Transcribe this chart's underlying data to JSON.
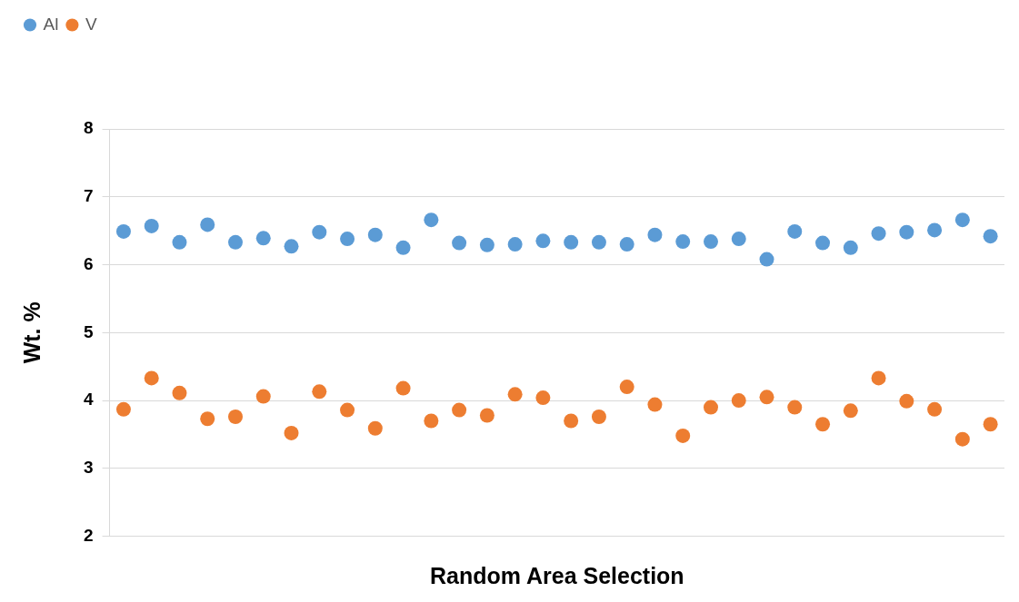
{
  "chart_data": {
    "type": "scatter",
    "xlabel": "Random Area Selection",
    "ylabel": "Wt. %",
    "categories": [
      null,
      null,
      null,
      null,
      null,
      null,
      null,
      null,
      null,
      null,
      null,
      null,
      null,
      null,
      null,
      null,
      null,
      null,
      null,
      null,
      null,
      null,
      null,
      null,
      null,
      null,
      null,
      null,
      null,
      null,
      null,
      null
    ],
    "series": [
      {
        "name": "Al",
        "color": "#5b9bd5",
        "values": [
          6.49,
          6.57,
          6.33,
          6.59,
          6.33,
          6.39,
          6.27,
          6.48,
          6.38,
          6.44,
          6.25,
          6.66,
          6.32,
          6.29,
          6.3,
          6.35,
          6.33,
          6.33,
          6.3,
          6.44,
          6.34,
          6.34,
          6.38,
          6.08,
          6.49,
          6.32,
          6.25,
          6.46,
          6.48,
          6.51,
          6.66,
          6.42
        ]
      },
      {
        "name": "V",
        "color": "#ed7d31",
        "values": [
          3.87,
          4.33,
          4.11,
          3.73,
          3.76,
          4.06,
          3.52,
          4.13,
          3.86,
          3.59,
          4.18,
          3.7,
          3.86,
          3.78,
          4.09,
          4.04,
          3.7,
          3.76,
          4.2,
          3.94,
          3.48,
          3.9,
          4.0,
          4.05,
          3.9,
          3.65,
          3.85,
          4.33,
          3.99,
          3.87,
          3.43,
          3.65
        ]
      }
    ],
    "ylim": [
      2,
      8
    ],
    "yticks": [
      2,
      3,
      4,
      5,
      6,
      7,
      8
    ],
    "grid": "y",
    "legend": "top left",
    "marker": "circle"
  }
}
